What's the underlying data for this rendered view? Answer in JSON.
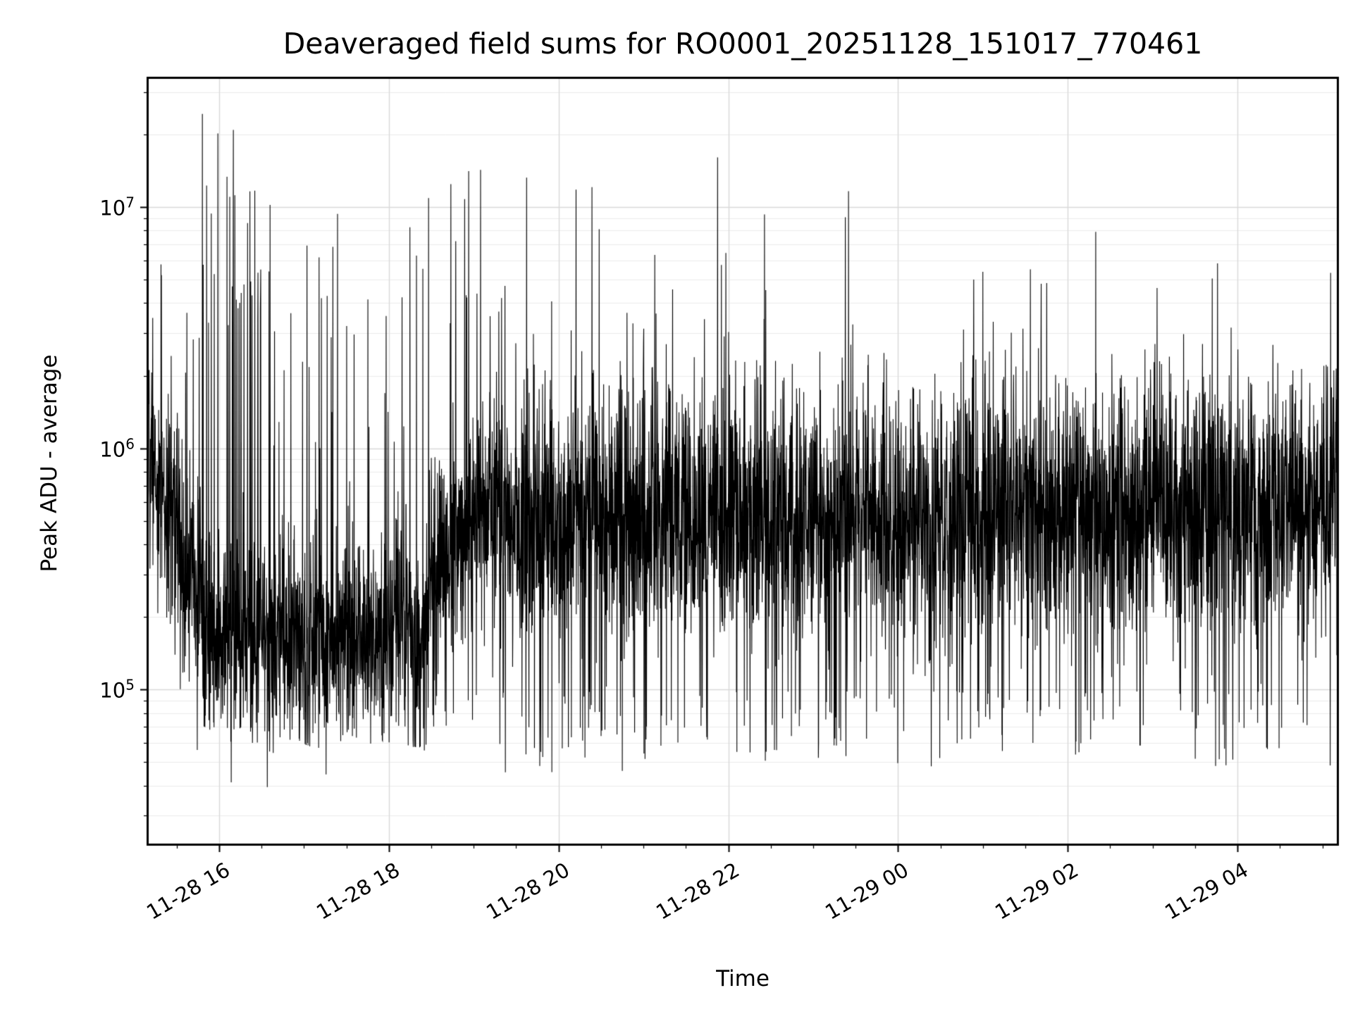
{
  "title": "Deaveraged field sums for RO0001_20251128_151017_770461",
  "axes": {
    "xlabel": "Time",
    "ylabel": "Peak ADU - average"
  },
  "colors": {
    "line": "#000000",
    "spine": "#000000",
    "grid_major": "#d9d9d9",
    "grid_minor": "#ebebeb",
    "background": "#ffffff"
  },
  "chart_data": {
    "type": "line",
    "title": "Deaveraged field sums for RO0001_20251128_151017_770461",
    "xlabel": "Time",
    "ylabel": "Peak ADU - average",
    "y_scale": "log",
    "ylim": [
      23000,
      34000000
    ],
    "x_start_hour": 15.17,
    "x_end_hour": 29.17,
    "x_ticks": [
      {
        "hour": 16,
        "label": "11-28 16"
      },
      {
        "hour": 18,
        "label": "11-28 18"
      },
      {
        "hour": 20,
        "label": "11-28 20"
      },
      {
        "hour": 22,
        "label": "11-28 22"
      },
      {
        "hour": 24,
        "label": "11-29 00"
      },
      {
        "hour": 26,
        "label": "11-29 02"
      },
      {
        "hour": 28,
        "label": "11-29 04"
      }
    ],
    "y_ticks": [
      {
        "value": 100000,
        "label": "10⁵",
        "exp": "5"
      },
      {
        "value": 1000000,
        "label": "10⁶",
        "exp": "6"
      },
      {
        "value": 10000000,
        "label": "10⁷",
        "exp": "7"
      }
    ],
    "grid": true,
    "legend": "none",
    "n_points": 5600,
    "seed": 13,
    "segments": [
      {
        "t0": 0.0,
        "t1": 0.045,
        "b0": 5.9,
        "b1": 5.4,
        "sigma": 0.22,
        "spike_rate": 0.05,
        "spike_lo": 6.3,
        "spike_hi": 6.85,
        "dip_rate": 0.02,
        "dip_lo": 5.0,
        "dip_hi": 5.2
      },
      {
        "t0": 0.045,
        "t1": 0.105,
        "b0": 5.3,
        "b1": 5.22,
        "sigma": 0.2,
        "spike_rate": 0.09,
        "spike_lo": 6.5,
        "spike_hi": 7.4,
        "dip_rate": 0.05,
        "dip_lo": 4.78,
        "dip_hi": 5.05
      },
      {
        "t0": 0.105,
        "t1": 0.235,
        "b0": 5.22,
        "b1": 5.24,
        "sigma": 0.2,
        "spike_rate": 0.03,
        "spike_lo": 6.0,
        "spike_hi": 7.15,
        "dip_rate": 0.06,
        "dip_lo": 4.75,
        "dip_hi": 5.05
      },
      {
        "t0": 0.235,
        "t1": 0.285,
        "b0": 5.45,
        "b1": 5.78,
        "sigma": 0.22,
        "spike_rate": 0.045,
        "spike_lo": 6.4,
        "spike_hi": 7.2,
        "dip_rate": 0.03,
        "dip_lo": 4.82,
        "dip_hi": 5.05
      },
      {
        "t0": 0.285,
        "t1": 0.43,
        "b0": 5.74,
        "b1": 5.72,
        "sigma": 0.26,
        "spike_rate": 0.018,
        "spike_lo": 6.2,
        "spike_hi": 7.15,
        "dip_rate": 0.045,
        "dip_lo": 4.65,
        "dip_hi": 5.0
      },
      {
        "t0": 0.43,
        "t1": 0.6,
        "b0": 5.72,
        "b1": 5.72,
        "sigma": 0.27,
        "spike_rate": 0.012,
        "spike_lo": 6.2,
        "spike_hi": 7.25,
        "dip_rate": 0.045,
        "dip_lo": 4.7,
        "dip_hi": 5.0
      },
      {
        "t0": 0.6,
        "t1": 1.0,
        "b0": 5.7,
        "b1": 5.76,
        "sigma": 0.27,
        "spike_rate": 0.009,
        "spike_lo": 6.2,
        "spike_hi": 6.9,
        "dip_rate": 0.04,
        "dip_lo": 4.68,
        "dip_hi": 5.0
      }
    ],
    "description": "Dense noisy black time-series on a log y-axis. Baseline ~1.5e5-2.5e5 ADU from 15:10 to ~18:25 with clusters of spikes reaching 1e7-2.5e7; baseline rises to ~4e5-9e5 after ~19:00 and stays there through 04:50 with occasional spikes to 3e6-1.8e7 and dips to ~5e4."
  }
}
